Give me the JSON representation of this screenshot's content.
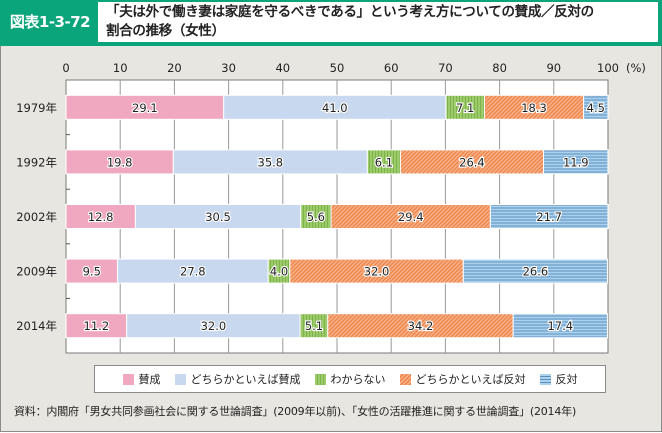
{
  "header": {
    "figure_number": "図表1-3-72",
    "title_line1": "「夫は外で働き妻は家庭を守るべきである」という考え方についての賛成／反対の",
    "title_line2": "割合の推移（女性）"
  },
  "colors": {
    "header_green": "#0aa57a",
    "agree": "#f0a8c0",
    "somewhat_agree": "#c8d8ee",
    "dont_know": "#9ccb6a",
    "somewhat_disagree": "#f39a63",
    "disagree": "#86bde3"
  },
  "chart_data": {
    "type": "bar",
    "orientation": "horizontal",
    "stacked": true,
    "title": "「夫は外で働き妻は家庭を守るべきである」という考え方についての賛成／反対の割合の推移（女性）",
    "xlabel": "",
    "xunit": "(%)",
    "xlim": [
      0,
      100
    ],
    "xticks": [
      "0",
      "10",
      "20",
      "30",
      "40",
      "50",
      "60",
      "70",
      "80",
      "90",
      "100"
    ],
    "grid": true,
    "legend_position": "bottom",
    "categories": [
      "1979年",
      "1992年",
      "2002年",
      "2009年",
      "2014年"
    ],
    "series": [
      {
        "name": "賛成",
        "key": "agree",
        "values": [
          29.1,
          19.8,
          12.8,
          9.5,
          11.2
        ]
      },
      {
        "name": "どちらかといえば賛成",
        "key": "somewhat_agree",
        "values": [
          41.0,
          35.8,
          30.5,
          27.8,
          32.0
        ]
      },
      {
        "name": "わからない",
        "key": "dont_know",
        "values": [
          7.1,
          6.1,
          5.6,
          4.0,
          5.1
        ]
      },
      {
        "name": "どちらかといえば反対",
        "key": "somewhat_disagree",
        "values": [
          18.3,
          26.4,
          29.4,
          32.0,
          34.2
        ]
      },
      {
        "name": "反対",
        "key": "disagree",
        "values": [
          4.5,
          11.9,
          21.7,
          26.6,
          17.4
        ]
      }
    ]
  },
  "legend": {
    "items": [
      "賛成",
      "どちらかといえば賛成",
      "わからない",
      "どちらかといえば反対",
      "反対"
    ]
  },
  "source": "資料：内閣府「男女共同参画社会に関する世論調査」(2009年以前)、「女性の活躍推進に関する世論調査」(2014年)"
}
